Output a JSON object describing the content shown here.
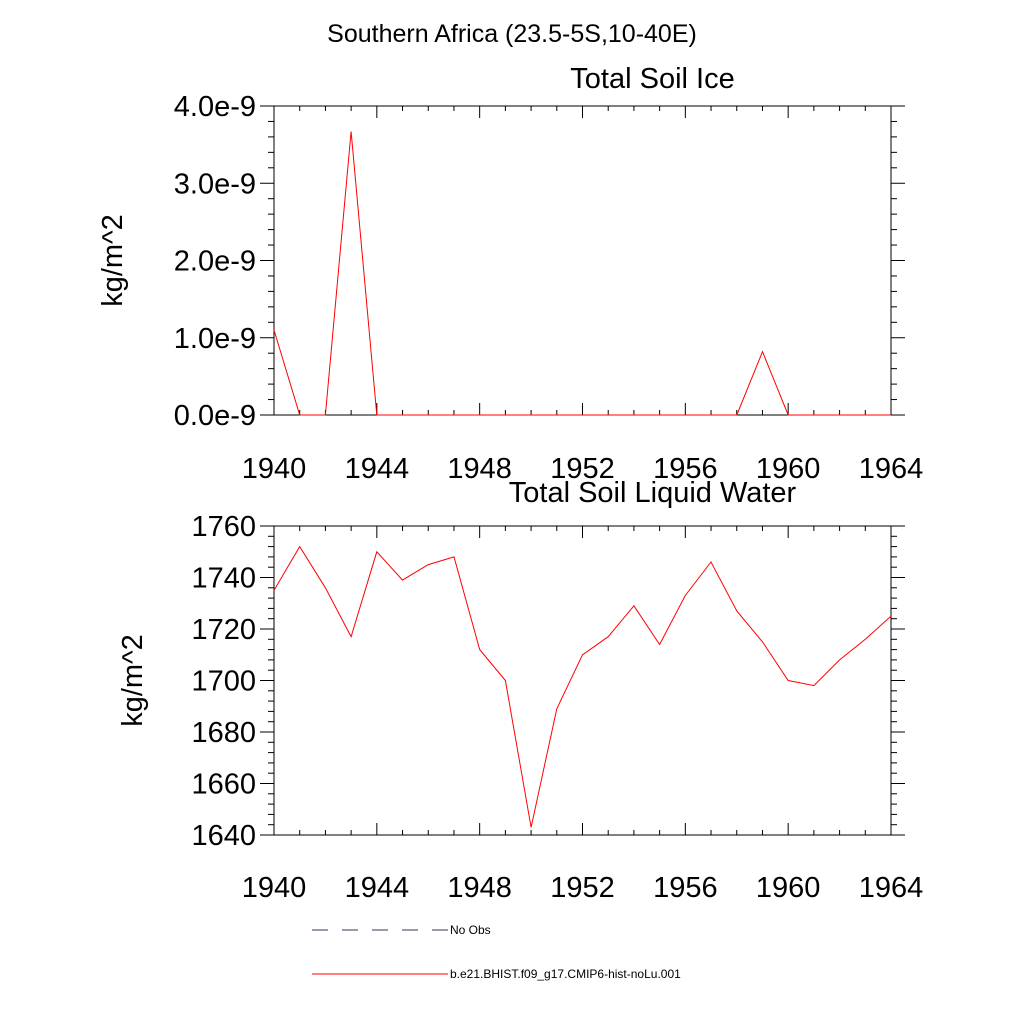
{
  "suptitle": "Southern Africa (23.5-5S,10-40E)",
  "colors": {
    "series": "#ff0000",
    "obs": "#333366",
    "frame": "#000000"
  },
  "legend": [
    {
      "label": "No Obs",
      "style": "dashed",
      "color": "#333366"
    },
    {
      "label": "b.e21.BHIST.f09_g17.CMIP6-hist-noLu.001",
      "style": "solid",
      "color": "#ff0000"
    }
  ],
  "chart_data": [
    {
      "type": "line",
      "title": "Total Soil Ice",
      "xlabel": "",
      "ylabel": "kg/m^2",
      "xlim": [
        1940,
        1964
      ],
      "ylim": [
        0,
        4e-09
      ],
      "xticks": [
        1940,
        1944,
        1948,
        1952,
        1956,
        1960,
        1964
      ],
      "yticks": [
        0,
        1e-09,
        2e-09,
        3e-09,
        4e-09
      ],
      "ytick_labels": [
        "0.0e-9",
        "1.0e-9",
        "2.0e-9",
        "3.0e-9",
        "4.0e-9"
      ],
      "grid": false,
      "x": [
        1940,
        1941,
        1942,
        1943,
        1944,
        1945,
        1946,
        1947,
        1948,
        1949,
        1950,
        1951,
        1952,
        1953,
        1954,
        1955,
        1956,
        1957,
        1958,
        1959,
        1960,
        1961,
        1962,
        1963,
        1964
      ],
      "series": [
        {
          "name": "b.e21.BHIST.f09_g17.CMIP6-hist-noLu.001",
          "values": [
            1.1e-09,
            0,
            0,
            3.67e-09,
            0,
            0,
            0,
            0,
            0,
            0,
            0,
            0,
            0,
            0,
            0,
            0,
            0,
            0,
            0,
            8.2e-10,
            0,
            0,
            0,
            0,
            0
          ]
        }
      ]
    },
    {
      "type": "line",
      "title": "Total Soil Liquid Water",
      "xlabel": "",
      "ylabel": "kg/m^2",
      "xlim": [
        1940,
        1964
      ],
      "ylim": [
        1640,
        1760
      ],
      "xticks": [
        1940,
        1944,
        1948,
        1952,
        1956,
        1960,
        1964
      ],
      "yticks": [
        1640,
        1660,
        1680,
        1700,
        1720,
        1740,
        1760
      ],
      "ytick_labels": [
        "1640",
        "1660",
        "1680",
        "1700",
        "1720",
        "1740",
        "1760"
      ],
      "grid": false,
      "x": [
        1940,
        1941,
        1942,
        1943,
        1944,
        1945,
        1946,
        1947,
        1948,
        1949,
        1950,
        1951,
        1952,
        1953,
        1954,
        1955,
        1956,
        1957,
        1958,
        1959,
        1960,
        1961,
        1962,
        1963,
        1964
      ],
      "series": [
        {
          "name": "b.e21.BHIST.f09_g17.CMIP6-hist-noLu.001",
          "values": [
            1735,
            1752,
            1736,
            1717,
            1750,
            1739,
            1745,
            1748,
            1712,
            1700,
            1643,
            1689,
            1710,
            1717,
            1729,
            1714,
            1733,
            1746,
            1727,
            1715,
            1700,
            1698,
            1708,
            1716,
            1725
          ]
        }
      ]
    }
  ]
}
